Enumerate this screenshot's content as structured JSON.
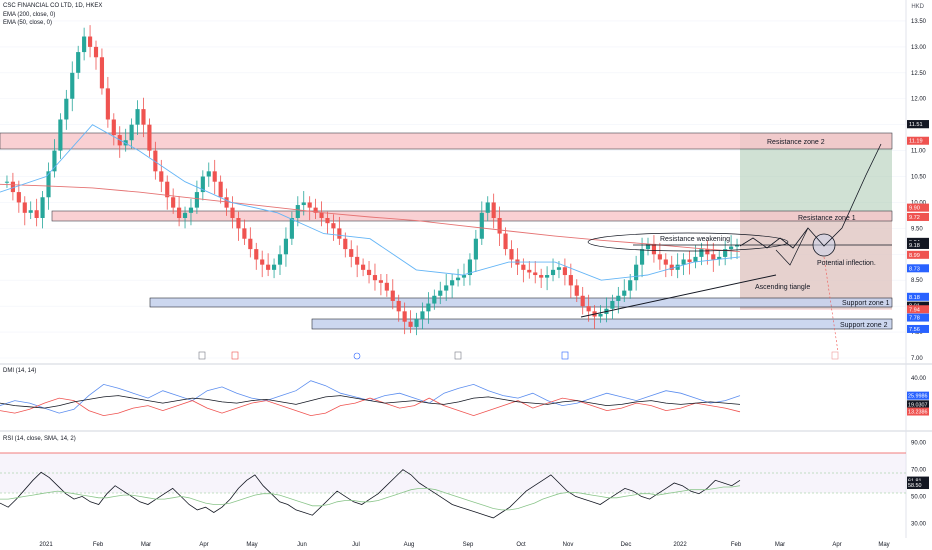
{
  "header": {
    "symbol_line": "CSC FINANCIAL CO LTD, 1D, HKEX",
    "ema200_line": "EMA (200, close, 0)",
    "ema50_line": "EMA (50, close, 0)",
    "currency": "HKD"
  },
  "dmi_pane": {
    "label": "DMI (14, 14)"
  },
  "rsi_pane": {
    "label": "RSI (14, close, SMA, 14, 2)"
  },
  "colors": {
    "up": "#26a69a",
    "down": "#ef5350",
    "ema200": "#e57373",
    "ema50": "#64b5f6",
    "zone_red": "#f8c5c9",
    "zone_blue": "#c7d3ee",
    "zone_green": "#a9c8b0",
    "dmi_plus": "#5b8def",
    "dmi_minus": "#ef5350",
    "adx": "#131722",
    "rsi": "#131722",
    "rsi_ma": "#8bc58b"
  },
  "chart_data": [
    {
      "type": "candlestick",
      "title": "CSC FINANCIAL CO LTD, 1D, HKEX",
      "ylim": [
        7.0,
        13.75
      ],
      "y_ticks": [
        "13.50",
        "13.00",
        "12.50",
        "12.00",
        "11.50",
        "11.00",
        "10.50",
        "10.00",
        "9.50",
        "9.00",
        "8.50",
        "8.00",
        "7.50",
        "7.00"
      ],
      "x_ticks": [
        "2021",
        "Feb",
        "Mar",
        "Apr",
        "May",
        "Jun",
        "Jul",
        "Aug",
        "Sep",
        "Oct",
        "Nov",
        "Dec",
        "2022",
        "Feb",
        "Mar",
        "Apr",
        "May"
      ],
      "price_labels": [
        {
          "value": "11.51",
          "color": "#131722"
        },
        {
          "value": "11.51",
          "color": "#131722"
        },
        {
          "value": "11.19",
          "color": "#ef5350"
        },
        {
          "value": "9.90",
          "color": "#ef5350"
        },
        {
          "value": "9.72",
          "color": "#ef5350"
        },
        {
          "value": "9.24",
          "color": "#131722"
        },
        {
          "value": "9.18",
          "color": "#131722"
        },
        {
          "value": "8.99",
          "color": "#ef5350"
        },
        {
          "value": "8.73",
          "color": "#2962ff"
        },
        {
          "value": "8.18",
          "color": "#2962ff"
        },
        {
          "value": "8.01",
          "color": "#131722"
        },
        {
          "value": "7.94",
          "color": "#ef5350"
        },
        {
          "value": "7.78",
          "color": "#2962ff"
        },
        {
          "value": "7.56",
          "color": "#2962ff"
        }
      ],
      "annotations": [
        "Resistance zone 2",
        "Resistance zone 1",
        "Resistance weakening",
        "Potential inflection.",
        "Ascending tiangle",
        "Support zone 1",
        "Support zone 2"
      ],
      "zones": [
        {
          "name": "Resistance zone 2",
          "low": 11.19,
          "high": 11.51
        },
        {
          "name": "Resistance zone 1",
          "low": 9.72,
          "high": 9.9
        },
        {
          "name": "Support zone 1",
          "low": 8.01,
          "high": 8.18
        },
        {
          "name": "Support zone 2",
          "low": 7.56,
          "high": 7.78
        }
      ],
      "closes": [
        10.4,
        10.2,
        10.0,
        9.8,
        9.85,
        9.7,
        10.1,
        10.6,
        11.0,
        11.6,
        12.0,
        12.5,
        12.9,
        13.2,
        13.0,
        12.8,
        12.2,
        11.6,
        11.3,
        11.1,
        11.2,
        11.5,
        11.8,
        11.5,
        11.0,
        10.6,
        10.4,
        10.1,
        9.9,
        9.7,
        9.8,
        9.9,
        10.2,
        10.5,
        10.6,
        10.4,
        10.1,
        9.9,
        9.7,
        9.5,
        9.3,
        9.1,
        8.9,
        8.8,
        8.7,
        8.8,
        9.0,
        9.3,
        9.7,
        9.95,
        10.0,
        9.9,
        9.8,
        9.7,
        9.6,
        9.5,
        9.3,
        9.1,
        8.95,
        8.8,
        8.7,
        8.6,
        8.5,
        8.45,
        8.3,
        8.1,
        7.9,
        7.7,
        7.6,
        7.75,
        7.9,
        8.05,
        8.2,
        8.3,
        8.4,
        8.5,
        8.55,
        8.6,
        8.9,
        9.3,
        9.8,
        10.0,
        9.7,
        9.4,
        9.1,
        8.9,
        8.8,
        8.7,
        8.65,
        8.6,
        8.55,
        8.6,
        8.7,
        8.75,
        8.6,
        8.4,
        8.2,
        8.0,
        7.9,
        7.8,
        7.85,
        7.95,
        8.1,
        8.2,
        8.3,
        8.5,
        8.8,
        9.1,
        9.2,
        9.0,
        8.9,
        8.8,
        8.7,
        8.8,
        8.9,
        8.85,
        8.95,
        9.1,
        9.0,
        8.9,
        8.95,
        9.1,
        9.15,
        9.18
      ],
      "ema200": [
        10.35,
        10.32,
        10.28,
        10.2,
        10.1,
        10.0,
        9.9,
        9.8,
        9.72,
        9.65,
        9.55,
        9.45,
        9.35,
        9.27,
        9.2,
        9.12,
        9.05
      ],
      "ema50": [
        10.2,
        10.5,
        11.5,
        11.0,
        10.4,
        10.0,
        9.8,
        9.4,
        9.3,
        8.7,
        8.6,
        8.85,
        8.85,
        8.5,
        8.6,
        8.85,
        8.95
      ]
    },
    {
      "type": "line",
      "title": "DMI (14, 14)",
      "ylim": [
        0,
        45
      ],
      "y_ticks": [
        "40.00"
      ],
      "series_labels": [
        {
          "value": "25.9986",
          "color": "#2962ff"
        },
        {
          "value": "19.0307",
          "color": "#131722"
        },
        {
          "value": "13.2386",
          "color": "#ef5350"
        }
      ],
      "series": [
        {
          "name": "+DI",
          "values": [
            18,
            22,
            20,
            16,
            12,
            15,
            26,
            35,
            32,
            28,
            24,
            30,
            26,
            22,
            30,
            33,
            28,
            24,
            22,
            26,
            30,
            38,
            34,
            28,
            25,
            22,
            26,
            28,
            24,
            20,
            28,
            32,
            35,
            30,
            26,
            24,
            28,
            22,
            18,
            20,
            24,
            28,
            25,
            22,
            26,
            30,
            28,
            24,
            20,
            22,
            26
          ]
        },
        {
          "name": "-DI",
          "values": [
            14,
            12,
            15,
            20,
            24,
            22,
            14,
            10,
            12,
            16,
            18,
            14,
            18,
            22,
            16,
            12,
            16,
            20,
            22,
            18,
            14,
            10,
            12,
            18,
            20,
            24,
            20,
            16,
            18,
            24,
            18,
            14,
            10,
            14,
            18,
            22,
            16,
            20,
            24,
            22,
            18,
            14,
            16,
            20,
            18,
            14,
            16,
            20,
            18,
            16,
            13
          ]
        },
        {
          "name": "ADX",
          "values": [
            20,
            18,
            17,
            16,
            18,
            21,
            23,
            25,
            26,
            24,
            22,
            20,
            22,
            24,
            23,
            21,
            20,
            22,
            23,
            21,
            19,
            22,
            25,
            26,
            24,
            22,
            20,
            21,
            22,
            20,
            19,
            21,
            24,
            25,
            23,
            21,
            20,
            19,
            21,
            22,
            20,
            18,
            19,
            21,
            22,
            20,
            19,
            20,
            21,
            20,
            19
          ]
        }
      ]
    },
    {
      "type": "line",
      "title": "RSI (14, close, SMA, 14, 2)",
      "ylim": [
        25,
        95
      ],
      "y_ticks": [
        "90.00",
        "70.00",
        "50.00",
        "30.00"
      ],
      "series_labels": [
        {
          "value": "61.81",
          "color": "#131722"
        },
        {
          "value": "58.50",
          "color": "#131722"
        }
      ],
      "series": [
        {
          "name": "RSI",
          "values": [
            45,
            42,
            48,
            55,
            62,
            68,
            64,
            58,
            52,
            48,
            50,
            46,
            44,
            52,
            58,
            54,
            50,
            46,
            44,
            48,
            52,
            56,
            50,
            44,
            40,
            42,
            38,
            42,
            48,
            56,
            62,
            66,
            58,
            52,
            46,
            44,
            40,
            38,
            36,
            42,
            48,
            54,
            50,
            46,
            44,
            48,
            52,
            58,
            64,
            70,
            66,
            60,
            56,
            52,
            48,
            44,
            42,
            40,
            38,
            36,
            34,
            38,
            42,
            48,
            54,
            58,
            62,
            66,
            60,
            54,
            50,
            48,
            46,
            44,
            48,
            52,
            56,
            54,
            50,
            48,
            52,
            56,
            60,
            58,
            54,
            52,
            56,
            62,
            60,
            58,
            62
          ]
        },
        {
          "name": "RSI-based MA",
          "values": [
            48,
            48,
            49,
            50,
            51,
            52,
            53,
            54,
            53,
            52,
            51,
            50,
            49,
            49,
            50,
            51,
            51,
            50,
            49,
            48,
            48,
            49,
            50,
            49,
            47,
            45,
            44,
            44,
            45,
            47,
            49,
            51,
            52,
            52,
            51,
            49,
            47,
            45,
            43,
            43,
            44,
            46,
            47,
            47,
            46,
            46,
            47,
            49,
            51,
            53,
            55,
            56,
            56,
            55,
            53,
            51,
            49,
            47,
            45,
            43,
            41,
            40,
            40,
            41,
            43,
            45,
            48,
            50,
            52,
            53,
            53,
            52,
            51,
            50,
            49,
            49,
            50,
            51,
            52,
            52,
            51,
            52,
            53,
            54,
            55,
            55,
            55,
            56,
            57,
            57,
            58
          ]
        }
      ]
    }
  ]
}
